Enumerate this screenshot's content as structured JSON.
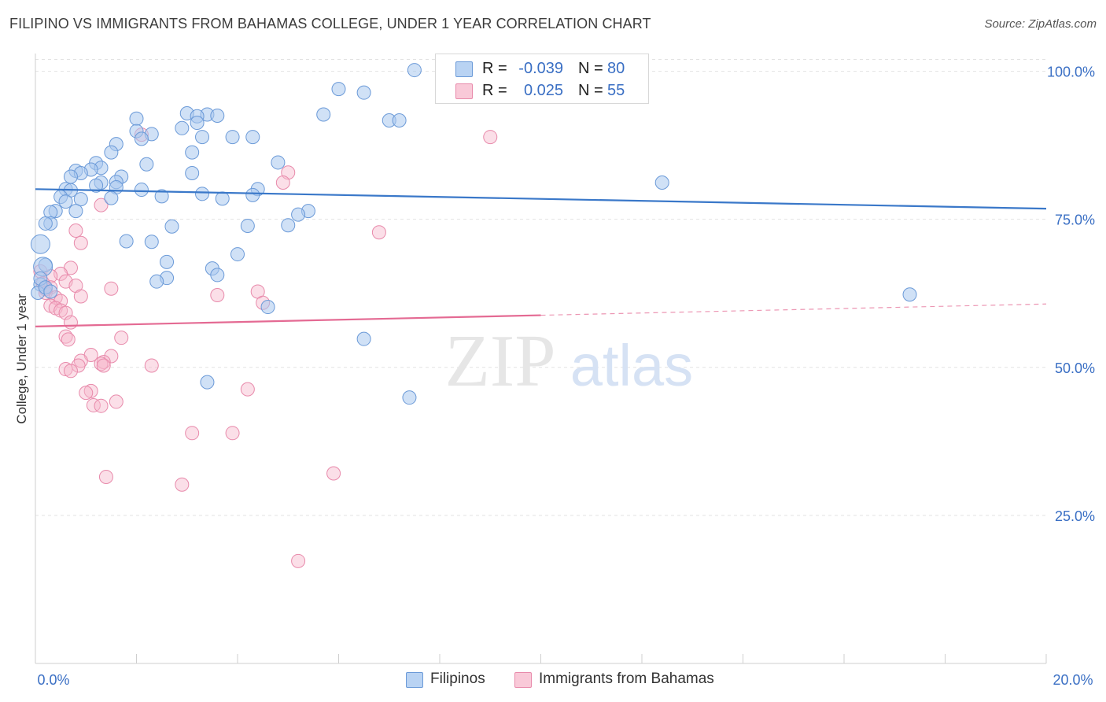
{
  "header": {
    "title": "FILIPINO VS IMMIGRANTS FROM BAHAMAS COLLEGE, UNDER 1 YEAR CORRELATION CHART",
    "source": "Source: ZipAtlas.com"
  },
  "watermark": {
    "zip": "ZIP",
    "atlas": "atlas"
  },
  "legend": {
    "rows": [
      {
        "r_label": "R =",
        "r_value": "-0.039",
        "n_label": "N =",
        "n_value": "80"
      },
      {
        "r_label": "R =",
        "r_value": "0.025",
        "n_label": "N =",
        "n_value": "55"
      }
    ]
  },
  "colors": {
    "blue": "#3a78c9",
    "blue_fill": "#a9c8ef",
    "blue_stroke": "#6b9ad8",
    "pink": "#e46a93",
    "pink_fill": "#f6b7cb",
    "pink_stroke": "#e88aab",
    "axis_text": "#3a6fc4",
    "grid": "#e2e2e2"
  },
  "chart_data": {
    "type": "scatter",
    "title": "FILIPINO VS IMMIGRANTS FROM BAHAMAS COLLEGE, UNDER 1 YEAR CORRELATION CHART",
    "xlabel": "",
    "ylabel": "College, Under 1 year",
    "xlim": [
      0,
      20
    ],
    "ylim": [
      0,
      103
    ],
    "x_ticks_labels": [
      "0.0%",
      "20.0%"
    ],
    "y_ticks": [
      25,
      50,
      75,
      100
    ],
    "y_ticks_labels": [
      "25.0%",
      "50.0%",
      "75.0%",
      "100.0%"
    ],
    "legend_position": "top-center",
    "series": [
      {
        "name": "Filipinos",
        "color": "#3a78c9",
        "trend": {
          "x": [
            0,
            20
          ],
          "y": [
            80.1,
            76.8
          ],
          "dashed_from": null
        },
        "points": [
          [
            7.5,
            100.2
          ],
          [
            6.0,
            97.0
          ],
          [
            6.5,
            96.4
          ],
          [
            5.7,
            92.7
          ],
          [
            7.0,
            91.7
          ],
          [
            7.2,
            91.7
          ],
          [
            3.0,
            92.9
          ],
          [
            3.4,
            92.7
          ],
          [
            3.6,
            92.5
          ],
          [
            3.2,
            92.4
          ],
          [
            2.0,
            92.0
          ],
          [
            3.2,
            91.3
          ],
          [
            2.9,
            90.4
          ],
          [
            2.0,
            89.9
          ],
          [
            2.3,
            89.4
          ],
          [
            3.3,
            88.9
          ],
          [
            3.9,
            88.9
          ],
          [
            4.3,
            88.9
          ],
          [
            2.1,
            88.6
          ],
          [
            1.6,
            87.7
          ],
          [
            1.5,
            86.3
          ],
          [
            3.1,
            86.3
          ],
          [
            4.8,
            84.6
          ],
          [
            1.2,
            84.5
          ],
          [
            2.2,
            84.3
          ],
          [
            1.3,
            83.7
          ],
          [
            1.1,
            83.4
          ],
          [
            0.8,
            83.2
          ],
          [
            0.9,
            82.8
          ],
          [
            3.1,
            82.8
          ],
          [
            1.7,
            82.2
          ],
          [
            0.7,
            82.2
          ],
          [
            1.6,
            81.3
          ],
          [
            1.3,
            81.2
          ],
          [
            1.2,
            80.7
          ],
          [
            1.6,
            80.4
          ],
          [
            0.6,
            80.1
          ],
          [
            4.4,
            80.1
          ],
          [
            2.1,
            80.0
          ],
          [
            0.7,
            79.9
          ],
          [
            3.3,
            79.3
          ],
          [
            0.5,
            78.8
          ],
          [
            1.5,
            78.6
          ],
          [
            2.5,
            78.9
          ],
          [
            3.7,
            78.5
          ],
          [
            4.3,
            79.1
          ],
          [
            0.9,
            78.4
          ],
          [
            0.6,
            78.0
          ],
          [
            12.4,
            81.2
          ],
          [
            0.8,
            76.4
          ],
          [
            0.4,
            76.4
          ],
          [
            0.3,
            76.2
          ],
          [
            5.4,
            76.4
          ],
          [
            5.2,
            75.8
          ],
          [
            0.3,
            74.3
          ],
          [
            0.2,
            74.3
          ],
          [
            2.7,
            73.8
          ],
          [
            4.2,
            73.9
          ],
          [
            5.0,
            74.0
          ],
          [
            1.8,
            71.3
          ],
          [
            2.3,
            71.2
          ],
          [
            0.1,
            70.8
          ],
          [
            4.0,
            69.1
          ],
          [
            2.6,
            67.8
          ],
          [
            0.2,
            67.3
          ],
          [
            0.15,
            67.0
          ],
          [
            3.5,
            66.7
          ],
          [
            3.6,
            65.6
          ],
          [
            2.6,
            65.1
          ],
          [
            2.4,
            64.5
          ],
          [
            0.1,
            64.0
          ],
          [
            0.05,
            62.6
          ],
          [
            17.3,
            62.3
          ],
          [
            4.6,
            60.2
          ],
          [
            6.5,
            54.8
          ],
          [
            7.4,
            44.9
          ],
          [
            3.4,
            47.5
          ],
          [
            0.1,
            65.0
          ],
          [
            0.2,
            63.5
          ],
          [
            0.3,
            62.8
          ]
        ]
      },
      {
        "name": "Immigrants from Bahamas",
        "color": "#e46a93",
        "trend": {
          "x": [
            0,
            20
          ],
          "y": [
            56.9,
            60.7
          ],
          "dashed_from": 10.0
        },
        "points": [
          [
            9.0,
            88.9
          ],
          [
            2.1,
            89.3
          ],
          [
            5.0,
            82.9
          ],
          [
            4.9,
            81.2
          ],
          [
            1.3,
            77.4
          ],
          [
            0.8,
            73.1
          ],
          [
            6.8,
            72.8
          ],
          [
            0.9,
            71.0
          ],
          [
            0.7,
            66.8
          ],
          [
            0.1,
            66.2
          ],
          [
            0.5,
            65.8
          ],
          [
            0.3,
            65.4
          ],
          [
            0.6,
            64.5
          ],
          [
            0.15,
            64.2
          ],
          [
            0.8,
            63.8
          ],
          [
            0.3,
            63.5
          ],
          [
            0.2,
            63.2
          ],
          [
            1.5,
            63.3
          ],
          [
            4.4,
            62.8
          ],
          [
            0.2,
            62.6
          ],
          [
            3.6,
            62.2
          ],
          [
            0.4,
            61.8
          ],
          [
            0.9,
            62.0
          ],
          [
            0.5,
            61.2
          ],
          [
            4.5,
            60.9
          ],
          [
            0.3,
            60.4
          ],
          [
            0.4,
            60.0
          ],
          [
            0.5,
            59.6
          ],
          [
            0.6,
            59.2
          ],
          [
            0.7,
            57.6
          ],
          [
            1.7,
            55.0
          ],
          [
            0.6,
            55.2
          ],
          [
            0.65,
            54.7
          ],
          [
            1.1,
            52.1
          ],
          [
            1.5,
            51.9
          ],
          [
            0.9,
            51.1
          ],
          [
            1.35,
            50.9
          ],
          [
            1.3,
            50.6
          ],
          [
            1.35,
            50.3
          ],
          [
            0.85,
            50.3
          ],
          [
            2.3,
            50.3
          ],
          [
            0.6,
            49.7
          ],
          [
            0.7,
            49.4
          ],
          [
            1.1,
            46.0
          ],
          [
            1.0,
            45.7
          ],
          [
            4.2,
            46.3
          ],
          [
            1.6,
            44.2
          ],
          [
            1.15,
            43.6
          ],
          [
            1.3,
            43.5
          ],
          [
            3.1,
            38.9
          ],
          [
            3.9,
            38.9
          ],
          [
            1.4,
            31.5
          ],
          [
            2.9,
            30.2
          ],
          [
            5.9,
            32.1
          ],
          [
            5.2,
            17.3
          ]
        ]
      }
    ]
  },
  "axes": {
    "y_title": "College, Under 1 year",
    "x_left": "0.0%",
    "x_right": "20.0%"
  },
  "bottom_legend": {
    "items": [
      {
        "label": "Filipinos"
      },
      {
        "label": "Immigrants from Bahamas"
      }
    ]
  }
}
